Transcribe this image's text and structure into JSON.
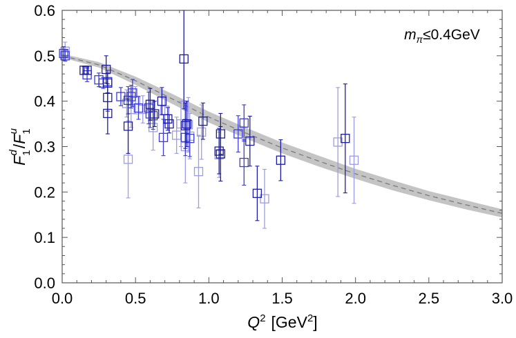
{
  "chart_data": {
    "type": "scatter",
    "xlabel_main": "Q",
    "xlabel_sup": "2",
    "xlabel_unit_open": "[GeV",
    "xlabel_unit_sup": "2",
    "xlabel_unit_close": "]",
    "ylabel": {
      "num": "F",
      "num_sup": "d",
      "num_sub": "1",
      "slash": "/",
      "den": "F",
      "den_sup": "u",
      "den_sub": "1"
    },
    "annotation": {
      "m": "m",
      "sub": "π",
      "rest": "≤0.4GeV"
    },
    "xlim": [
      0,
      3
    ],
    "ylim": [
      0,
      0.6
    ],
    "xticks": [
      "0.0",
      "0.5",
      "1.0",
      "1.5",
      "2.0",
      "2.5",
      "3.0"
    ],
    "yticks": [
      "0.0",
      "0.1",
      "0.2",
      "0.3",
      "0.4",
      "0.5",
      "0.6"
    ],
    "band": {
      "x": [
        0,
        0.25,
        0.5,
        0.75,
        1.0,
        1.25,
        1.5,
        1.75,
        2.0,
        2.25,
        2.5,
        2.75,
        3.0
      ],
      "center": [
        0.5,
        0.48,
        0.445,
        0.405,
        0.365,
        0.33,
        0.297,
        0.268,
        0.24,
        0.215,
        0.192,
        0.172,
        0.153
      ],
      "half_width": [
        0.004,
        0.006,
        0.009,
        0.011,
        0.012,
        0.012,
        0.012,
        0.012,
        0.011,
        0.011,
        0.01,
        0.01,
        0.009
      ]
    },
    "colors": {
      "dark": "#1a1aa8",
      "mid": "#3b3bd6",
      "light": "#9b9be8",
      "band": "#c4c4c4",
      "line": "#7a7a7a"
    },
    "series": [
      {
        "name": "dark",
        "color": "#1a1aa8",
        "points": [
          [
            0.15,
            0.468,
            0.008
          ],
          [
            0.17,
            0.468,
            0.008
          ],
          [
            0.3,
            0.47,
            0.03
          ],
          [
            0.31,
            0.44,
            0.022
          ],
          [
            0.31,
            0.408,
            0.03
          ],
          [
            0.31,
            0.373,
            0.045
          ],
          [
            0.45,
            0.345,
            0.06
          ],
          [
            0.6,
            0.393,
            0.035
          ],
          [
            0.63,
            0.372,
            0.028
          ],
          [
            0.68,
            0.4,
            0.03
          ],
          [
            0.72,
            0.361,
            0.025
          ],
          [
            0.73,
            0.35,
            0.02
          ],
          [
            0.83,
            0.493,
            0.11
          ],
          [
            0.85,
            0.35,
            0.05
          ],
          [
            0.84,
            0.346,
            0.05
          ],
          [
            0.96,
            0.356,
            0.04
          ],
          [
            1.07,
            0.29,
            0.05
          ],
          [
            1.08,
            0.284,
            0.06
          ],
          [
            1.08,
            0.328,
            0.045
          ],
          [
            1.28,
            0.312,
            0.055
          ],
          [
            1.33,
            0.197,
            0.06
          ],
          [
            1.49,
            0.27,
            0.045
          ],
          [
            1.93,
            0.318,
            0.12
          ]
        ]
      },
      {
        "name": "mid",
        "color": "#3b3bd6",
        "points": [
          [
            0.01,
            0.505,
            0.015
          ],
          [
            0.02,
            0.5,
            0.012
          ],
          [
            0.17,
            0.458,
            0.015
          ],
          [
            0.25,
            0.447,
            0.015
          ],
          [
            0.28,
            0.44,
            0.012
          ],
          [
            0.31,
            0.443,
            0.025
          ],
          [
            0.4,
            0.41,
            0.02
          ],
          [
            0.45,
            0.402,
            0.03
          ],
          [
            0.47,
            0.41,
            0.025
          ],
          [
            0.48,
            0.418,
            0.03
          ],
          [
            0.52,
            0.385,
            0.025
          ],
          [
            0.59,
            0.385,
            0.035
          ],
          [
            0.6,
            0.372,
            0.03
          ],
          [
            0.62,
            0.368,
            0.03
          ],
          [
            0.69,
            0.32,
            0.04
          ],
          [
            0.84,
            0.32,
            0.04
          ],
          [
            0.87,
            0.318,
            0.04
          ],
          [
            1.2,
            0.328,
            0.04
          ],
          [
            1.24,
            0.265,
            0.05
          ],
          [
            1.24,
            0.352,
            0.04
          ]
        ]
      },
      {
        "name": "light",
        "color": "#9b9be8",
        "points": [
          [
            0.02,
            0.51,
            0.02
          ],
          [
            0.44,
            0.395,
            0.03
          ],
          [
            0.45,
            0.272,
            0.085
          ],
          [
            0.47,
            0.382,
            0.04
          ],
          [
            0.5,
            0.402,
            0.03
          ],
          [
            0.55,
            0.382,
            0.03
          ],
          [
            0.62,
            0.342,
            0.05
          ],
          [
            0.7,
            0.38,
            0.03
          ],
          [
            0.78,
            0.325,
            0.04
          ],
          [
            0.81,
            0.35,
            0.05
          ],
          [
            0.84,
            0.3,
            0.08
          ],
          [
            0.86,
            0.348,
            0.06
          ],
          [
            0.87,
            0.323,
            0.05
          ],
          [
            0.93,
            0.245,
            0.08
          ],
          [
            0.95,
            0.332,
            0.06
          ],
          [
            1.07,
            0.282,
            0.05
          ],
          [
            1.38,
            0.185,
            0.065
          ],
          [
            1.88,
            0.31,
            0.12
          ],
          [
            1.99,
            0.27,
            0.095
          ]
        ]
      }
    ]
  }
}
